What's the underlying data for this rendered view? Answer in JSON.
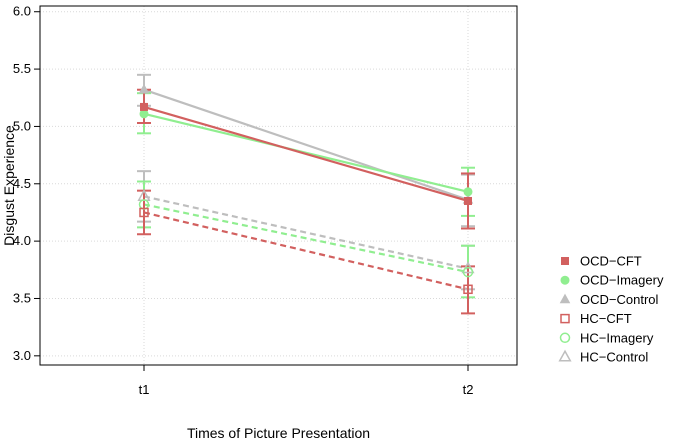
{
  "chart_data": {
    "type": "line",
    "xlabel": "Times of Picture Presentation",
    "ylabel": "Disgust Experience",
    "categories": [
      "t1",
      "t2"
    ],
    "ylim": [
      2.92,
      6.05
    ],
    "yticks": [
      3.0,
      3.5,
      4.0,
      4.5,
      5.0,
      5.5,
      6.0
    ],
    "ytick_labels": [
      "3.0",
      "3.5",
      "4.0",
      "4.5",
      "5.0",
      "5.5",
      "6.0"
    ],
    "grid": true,
    "legend_position": "right",
    "series": [
      {
        "name": "OCD−CFT",
        "values": [
          5.17,
          4.35
        ],
        "err_low": [
          5.03,
          4.11
        ],
        "err_high": [
          5.32,
          4.59
        ],
        "color": "#d2605f",
        "dash": false,
        "marker": "square-filled"
      },
      {
        "name": "OCD−Imagery",
        "values": [
          5.11,
          4.43
        ],
        "err_low": [
          4.94,
          4.22
        ],
        "err_high": [
          5.29,
          4.64
        ],
        "color": "#90ee90",
        "dash": false,
        "marker": "circle-filled"
      },
      {
        "name": "OCD−Control",
        "values": [
          5.32,
          4.36
        ],
        "err_low": [
          5.18,
          4.13
        ],
        "err_high": [
          5.45,
          4.58
        ],
        "color": "#bebebe",
        "dash": false,
        "marker": "triangle-filled"
      },
      {
        "name": "HC−CFT",
        "values": [
          4.25,
          3.58
        ],
        "err_low": [
          4.06,
          3.37
        ],
        "err_high": [
          4.44,
          3.78
        ],
        "color": "#d2605f",
        "dash": true,
        "marker": "square-open"
      },
      {
        "name": "HC−Imagery",
        "values": [
          4.32,
          3.73
        ],
        "err_low": [
          4.12,
          3.51
        ],
        "err_high": [
          4.52,
          3.96
        ],
        "color": "#90ee90",
        "dash": true,
        "marker": "circle-open"
      },
      {
        "name": "HC−Control",
        "values": [
          4.39,
          3.76
        ],
        "err_low": [
          4.17,
          3.58
        ],
        "err_high": [
          4.61,
          3.96
        ],
        "color": "#bebebe",
        "dash": true,
        "marker": "triangle-open"
      }
    ]
  }
}
